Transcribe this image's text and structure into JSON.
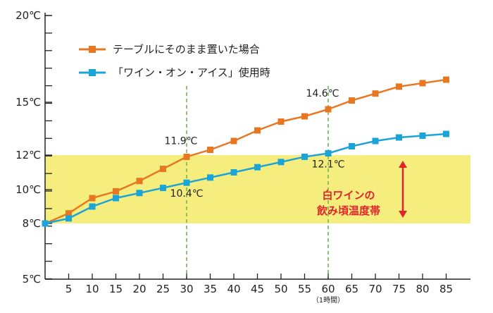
{
  "chart_data": {
    "type": "line",
    "x": [
      0,
      5,
      10,
      15,
      20,
      25,
      30,
      35,
      40,
      45,
      50,
      55,
      60,
      65,
      70,
      75,
      80,
      85
    ],
    "x_tick_labels": [
      "5",
      "10",
      "15",
      "20",
      "25",
      "30",
      "35",
      "40",
      "45",
      "50",
      "55",
      "60",
      "65",
      "70",
      "75",
      "80",
      "85"
    ],
    "x_tick_sublabel": {
      "at": "60",
      "text": "（1時間）"
    },
    "y_tick_labels": [
      {
        "value": 20,
        "text": "20℃"
      },
      {
        "value": 15,
        "text": "15℃"
      },
      {
        "value": 12,
        "text": "12℃"
      },
      {
        "value": 10,
        "text": "10℃"
      },
      {
        "value": 8,
        "text": "8℃"
      },
      {
        "value": 5,
        "text": "5℃"
      }
    ],
    "ylim": [
      5,
      20
    ],
    "xlim": [
      0,
      87
    ],
    "series": [
      {
        "name": "テーブルにそのまま置いた場合",
        "color": "#E87722",
        "values": [
          8.0,
          8.6,
          9.5,
          9.9,
          10.5,
          11.2,
          11.9,
          12.3,
          12.8,
          13.4,
          13.9,
          14.2,
          14.6,
          15.1,
          15.5,
          15.9,
          16.1,
          16.3
        ]
      },
      {
        "name": "「ワイン・オン・アイス」使用時",
        "color": "#1BA4D8",
        "values": [
          8.0,
          8.3,
          9.0,
          9.5,
          9.8,
          10.1,
          10.4,
          10.7,
          11.0,
          11.3,
          11.6,
          11.9,
          12.1,
          12.5,
          12.8,
          13.0,
          13.1,
          13.2
        ]
      }
    ],
    "band": {
      "from": 8,
      "to": 12,
      "color": "#F5EE7E",
      "label_line1": "白ワインの",
      "label_line2": "飲み頃温度帯",
      "label_color": "#E3242B"
    },
    "vlines": [
      30,
      60
    ],
    "annotations": [
      {
        "x": 30,
        "series": 0,
        "text": "11.9℃"
      },
      {
        "x": 30,
        "series": 1,
        "text": "10.4℃"
      },
      {
        "x": 60,
        "series": 0,
        "text": "14.6℃"
      },
      {
        "x": 60,
        "series": 1,
        "text": "12.1℃"
      }
    ],
    "legend_position": "top-left",
    "grid": false,
    "title": "",
    "xlabel": "",
    "ylabel": ""
  }
}
